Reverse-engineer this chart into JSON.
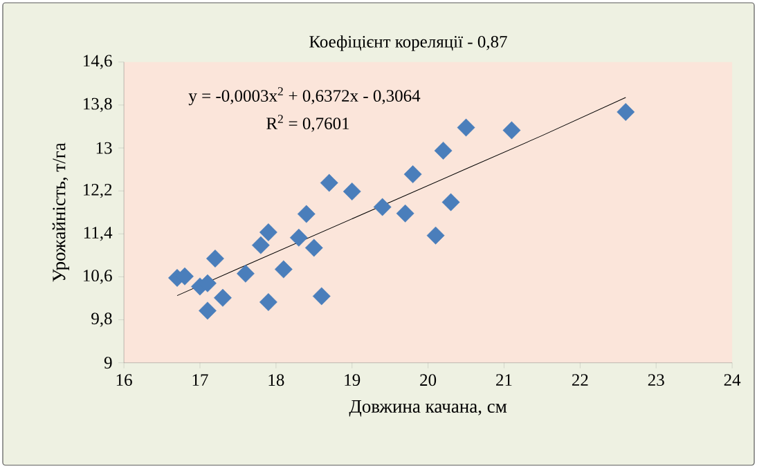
{
  "chart_data": {
    "type": "scatter",
    "xlabel": "Довжина качана, см",
    "ylabel": "Урожайність, т/га",
    "annotations": [
      "Коефіцієнт кореляції - 0,87",
      "y = -0,0003x$^{2}$ + 0,6372x - 0,3064",
      "R$^{2}$ = 0,7601"
    ],
    "xlim": [
      16,
      24
    ],
    "xticks": [
      16,
      17,
      18,
      19,
      20,
      21,
      22,
      23,
      24
    ],
    "ylim": [
      9,
      14.6
    ],
    "yticks": [
      9,
      {
        "value": 9.8,
        "label": "9,8"
      },
      {
        "value": 10.6,
        "label": "10,6"
      },
      {
        "value": 11.4,
        "label": "11,4"
      },
      {
        "value": 12.2,
        "label": "12,2"
      },
      13,
      {
        "value": 13.8,
        "label": "13,8"
      },
      {
        "value": 14.6,
        "label": "14,6"
      }
    ],
    "grid": false,
    "marker": "diamond",
    "series": [
      {
        "color": "#4a7ebb",
        "x": [
          16.7,
          16.8,
          17.0,
          17.1,
          17.2,
          17.1,
          17.3,
          17.6,
          17.8,
          17.9,
          17.9,
          18.1,
          18.3,
          18.4,
          18.5,
          18.6,
          18.7,
          19.0,
          19.4,
          19.7,
          19.8,
          20.1,
          20.2,
          20.3,
          20.5,
          21.1,
          22.6
        ],
        "values": [
          10.58,
          10.61,
          10.42,
          10.48,
          10.94,
          9.97,
          10.21,
          10.66,
          11.19,
          11.43,
          10.13,
          10.74,
          11.33,
          11.77,
          11.14,
          10.24,
          12.35,
          12.19,
          11.9,
          11.78,
          12.51,
          11.37,
          12.95,
          11.99,
          13.38,
          13.33,
          13.67
        ]
      },
      {
        "type": "line",
        "color": "#000000",
        "marker": "none",
        "x": [
          16.7,
          17.5,
          18.5,
          19.5,
          20.5,
          21.5,
          22.6
        ],
        "values": [
          10.25,
          10.75,
          11.37,
          11.99,
          12.61,
          13.23,
          13.94
        ]
      }
    ]
  }
}
